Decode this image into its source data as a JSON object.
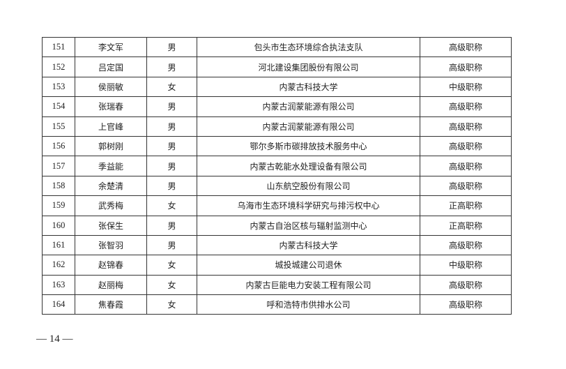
{
  "rows": [
    {
      "no": "151",
      "name": "李文军",
      "gender": "男",
      "unit": "包头市生态环境综合执法支队",
      "title": "高级职称"
    },
    {
      "no": "152",
      "name": "吕定国",
      "gender": "男",
      "unit": "河北建设集团股份有限公司",
      "title": "高级职称"
    },
    {
      "no": "153",
      "name": "侯丽敏",
      "gender": "女",
      "unit": "内蒙古科技大学",
      "title": "中级职称"
    },
    {
      "no": "154",
      "name": "张瑞春",
      "gender": "男",
      "unit": "内蒙古润蒙能源有限公司",
      "title": "高级职称"
    },
    {
      "no": "155",
      "name": "上官峰",
      "gender": "男",
      "unit": "内蒙古润蒙能源有限公司",
      "title": "高级职称"
    },
    {
      "no": "156",
      "name": "郭树刚",
      "gender": "男",
      "unit": "鄂尔多斯市碳排放技术服务中心",
      "title": "高级职称"
    },
    {
      "no": "157",
      "name": "季益能",
      "gender": "男",
      "unit": "内蒙古乾能水处理设备有限公司",
      "title": "高级职称"
    },
    {
      "no": "158",
      "name": "余楚清",
      "gender": "男",
      "unit": "山东航空股份有限公司",
      "title": "高级职称"
    },
    {
      "no": "159",
      "name": "武秀梅",
      "gender": "女",
      "unit": "乌海市生态环境科学研究与排污权中心",
      "title": "正高职称"
    },
    {
      "no": "160",
      "name": "张保生",
      "gender": "男",
      "unit": "内蒙古自治区核与辐射监测中心",
      "title": "正高职称"
    },
    {
      "no": "161",
      "name": "张智羽",
      "gender": "男",
      "unit": "内蒙古科技大学",
      "title": "高级职称"
    },
    {
      "no": "162",
      "name": "赵锦春",
      "gender": "女",
      "unit": "城投城建公司退休",
      "title": "中级职称"
    },
    {
      "no": "163",
      "name": "赵丽梅",
      "gender": "女",
      "unit": "内蒙古巨能电力安装工程有限公司",
      "title": "高级职称"
    },
    {
      "no": "164",
      "name": "焦春霞",
      "gender": "女",
      "unit": "呼和浩特市供排水公司",
      "title": "高级职称"
    }
  ],
  "page_number": "— 14 —"
}
